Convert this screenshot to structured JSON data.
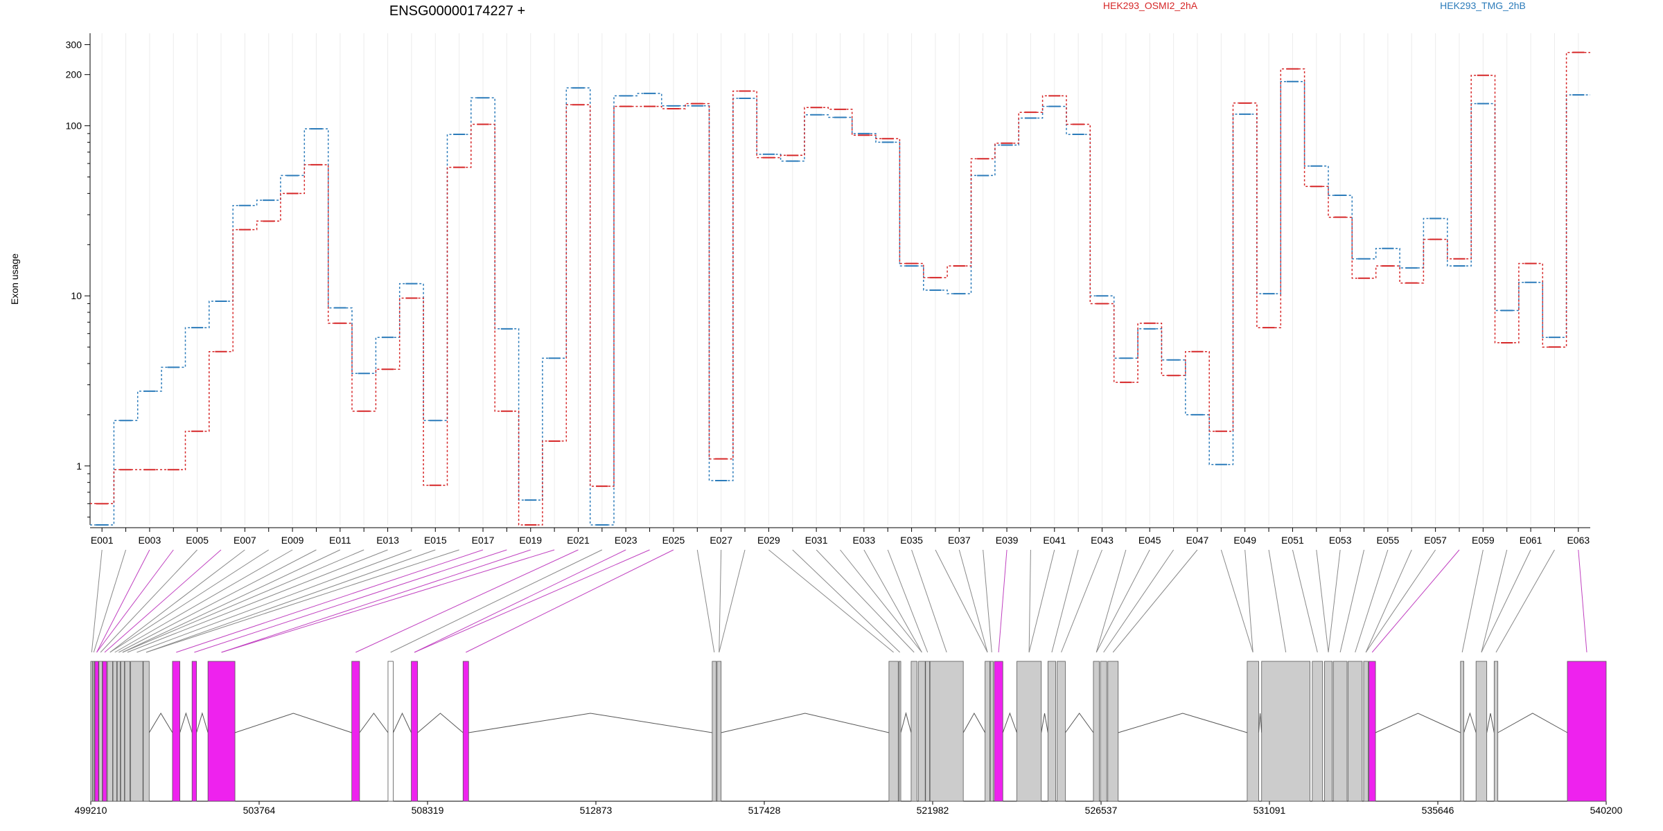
{
  "chart_data": {
    "type": "line",
    "title": "ENSG00000174227 +",
    "xlabel": "",
    "ylabel": "Exon usage",
    "y_scale": "log",
    "ylim": [
      0.45,
      350
    ],
    "y_ticks": [
      1,
      10,
      100,
      200,
      300
    ],
    "grid": "vertical",
    "legend_placement": "top",
    "series": [
      {
        "name": "HEK293_OSMI2_2hA",
        "color": "#d62728",
        "values": [
          0.6,
          0.95,
          0.95,
          0.95,
          1.6,
          4.7,
          24.5,
          27.5,
          40,
          59,
          6.9,
          2.1,
          3.7,
          9.7,
          0.77,
          57,
          102,
          2.1,
          0.45,
          1.4,
          133,
          0.76,
          130,
          130,
          126,
          135,
          1.1,
          160,
          65,
          67,
          128,
          125,
          88,
          84,
          15.5,
          12.8,
          15,
          64,
          79,
          120,
          150,
          102,
          9,
          3.1,
          6.9,
          3.4,
          4.7,
          1.6,
          136,
          6.5,
          216,
          44,
          29,
          12.7,
          15,
          11.9,
          21.5,
          16.5,
          198,
          5.3,
          15.5,
          5,
          270
        ]
      },
      {
        "name": "HEK293_TMG_2hB",
        "color": "#2b7bba",
        "values": [
          0.45,
          1.85,
          2.75,
          3.8,
          6.5,
          9.3,
          34,
          36.5,
          51,
          96,
          8.5,
          3.5,
          5.7,
          11.8,
          1.85,
          89,
          146,
          6.4,
          0.63,
          4.3,
          167,
          0.45,
          150,
          155,
          131,
          131,
          0.82,
          145,
          68,
          62,
          116,
          112,
          90,
          80,
          15,
          10.8,
          10.3,
          51,
          77,
          111,
          130,
          89,
          10,
          4.3,
          6.4,
          4.2,
          2,
          1.02,
          117,
          10.3,
          182,
          58,
          39,
          16.5,
          19,
          14.6,
          28.5,
          15,
          135,
          8.2,
          12,
          5.7,
          152
        ]
      }
    ],
    "exon_tick_labels": [
      "E001",
      "E003",
      "E005",
      "E007",
      "E009",
      "E011",
      "E013",
      "E015",
      "E017",
      "E019",
      "E021",
      "E023",
      "E025",
      "E027",
      "E029",
      "E031",
      "E033",
      "E035",
      "E037",
      "E039",
      "E041",
      "E043",
      "E045",
      "E047",
      "E049",
      "E051",
      "E053",
      "E055",
      "E057",
      "E059",
      "E061",
      "E063"
    ],
    "gene_model": {
      "genomic_range": [
        499210,
        540200
      ],
      "genomic_ticks": [
        "499210",
        "503764",
        "508319",
        "512873",
        "517428",
        "521982",
        "526537",
        "531091",
        "535646",
        "540200"
      ],
      "highlight_color": "#ee22ee",
      "feature_color": "#cccccc",
      "exons": [
        [
          499210,
          499260,
          "gray"
        ],
        [
          499270,
          499310,
          "gray"
        ],
        [
          499320,
          499420,
          "highlight"
        ],
        [
          499430,
          499520,
          "gray"
        ],
        [
          499530,
          499640,
          "highlight"
        ],
        [
          499660,
          499800,
          "gray"
        ],
        [
          499810,
          499910,
          "gray"
        ],
        [
          499925,
          500005,
          "gray"
        ],
        [
          500020,
          500120,
          "gray"
        ],
        [
          500130,
          500270,
          "gray"
        ],
        [
          500290,
          500620,
          "gray"
        ],
        [
          500630,
          500790,
          "gray"
        ],
        [
          501420,
          501620,
          "highlight"
        ],
        [
          501950,
          502070,
          "highlight"
        ],
        [
          502380,
          503110,
          "highlight"
        ],
        [
          506270,
          506480,
          "highlight"
        ],
        [
          507250,
          507390,
          "white"
        ],
        [
          507880,
          508050,
          "highlight"
        ],
        [
          509280,
          509430,
          "highlight"
        ],
        [
          516020,
          516130,
          "gray"
        ],
        [
          516150,
          516260,
          "gray"
        ],
        [
          520800,
          521050,
          "gray"
        ],
        [
          521070,
          521120,
          "gray"
        ],
        [
          521400,
          521560,
          "gray"
        ],
        [
          521600,
          521780,
          "gray"
        ],
        [
          521790,
          521900,
          "gray"
        ],
        [
          521910,
          522810,
          "gray"
        ],
        [
          523400,
          523530,
          "gray"
        ],
        [
          523540,
          523620,
          "gray"
        ],
        [
          523650,
          523880,
          "highlight"
        ],
        [
          524260,
          524920,
          "gray"
        ],
        [
          525100,
          525310,
          "gray"
        ],
        [
          525350,
          525570,
          "gray"
        ],
        [
          526330,
          526490,
          "gray"
        ],
        [
          526520,
          526690,
          "gray"
        ],
        [
          526720,
          527000,
          "gray"
        ],
        [
          530490,
          530800,
          "gray"
        ],
        [
          530880,
          532190,
          "gray"
        ],
        [
          532250,
          532530,
          "gray"
        ],
        [
          532580,
          532790,
          "gray"
        ],
        [
          532820,
          533190,
          "gray"
        ],
        [
          533220,
          533600,
          "gray"
        ],
        [
          533640,
          533760,
          "gray"
        ],
        [
          533780,
          533960,
          "highlight"
        ],
        [
          536260,
          536350,
          "gray"
        ],
        [
          536680,
          536970,
          "gray"
        ],
        [
          537170,
          537270,
          "gray"
        ],
        [
          539150,
          540200,
          "highlight"
        ]
      ]
    }
  }
}
